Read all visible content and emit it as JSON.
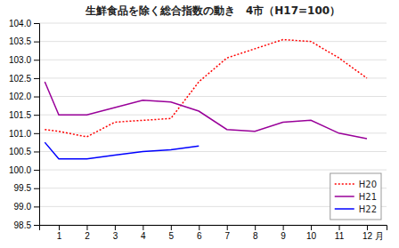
{
  "chart_data": {
    "type": "line",
    "title": "生鮮食品を除く総合指数の動き　4市（H17=100）",
    "xlabel": "月",
    "x": [
      0.5,
      1,
      2,
      3,
      4,
      5,
      6,
      7,
      8,
      9,
      10,
      11,
      12
    ],
    "xlim": [
      0.3,
      12.7
    ],
    "xticks": [
      1,
      2,
      3,
      4,
      5,
      6,
      7,
      8,
      9,
      10,
      11,
      12
    ],
    "ylim": [
      98.5,
      104.0
    ],
    "yticks": [
      98.5,
      {
        "value": 99.0,
        "label": "99.0"
      },
      99.5,
      {
        "value": 100.0,
        "label": "100.0"
      },
      100.5,
      {
        "value": 101.0,
        "label": "101.0"
      },
      101.5,
      {
        "value": 102.0,
        "label": "102.0"
      },
      102.5,
      {
        "value": 103.0,
        "label": "103.0"
      },
      103.5,
      {
        "value": 104.0,
        "label": "104.0"
      }
    ],
    "grid": true,
    "legend": "lower right",
    "series": [
      {
        "name": "H20",
        "color": "#ff0000",
        "line_style": "dotted",
        "values": [
          101.1,
          101.05,
          100.9,
          101.3,
          101.35,
          101.4,
          102.4,
          103.05,
          103.3,
          103.55,
          103.5,
          103.05,
          102.5
        ]
      },
      {
        "name": "H21",
        "color": "#990099",
        "line_style": "solid",
        "values": [
          102.4,
          101.5,
          101.5,
          101.7,
          101.9,
          101.85,
          101.6,
          101.1,
          101.05,
          101.3,
          101.35,
          101.0,
          100.85
        ]
      },
      {
        "name": "H22",
        "color": "#0000ff",
        "line_style": "solid",
        "values": [
          100.75,
          100.3,
          100.3,
          100.4,
          100.5,
          100.55,
          100.65,
          null,
          null,
          null,
          null,
          null,
          null
        ]
      }
    ]
  }
}
